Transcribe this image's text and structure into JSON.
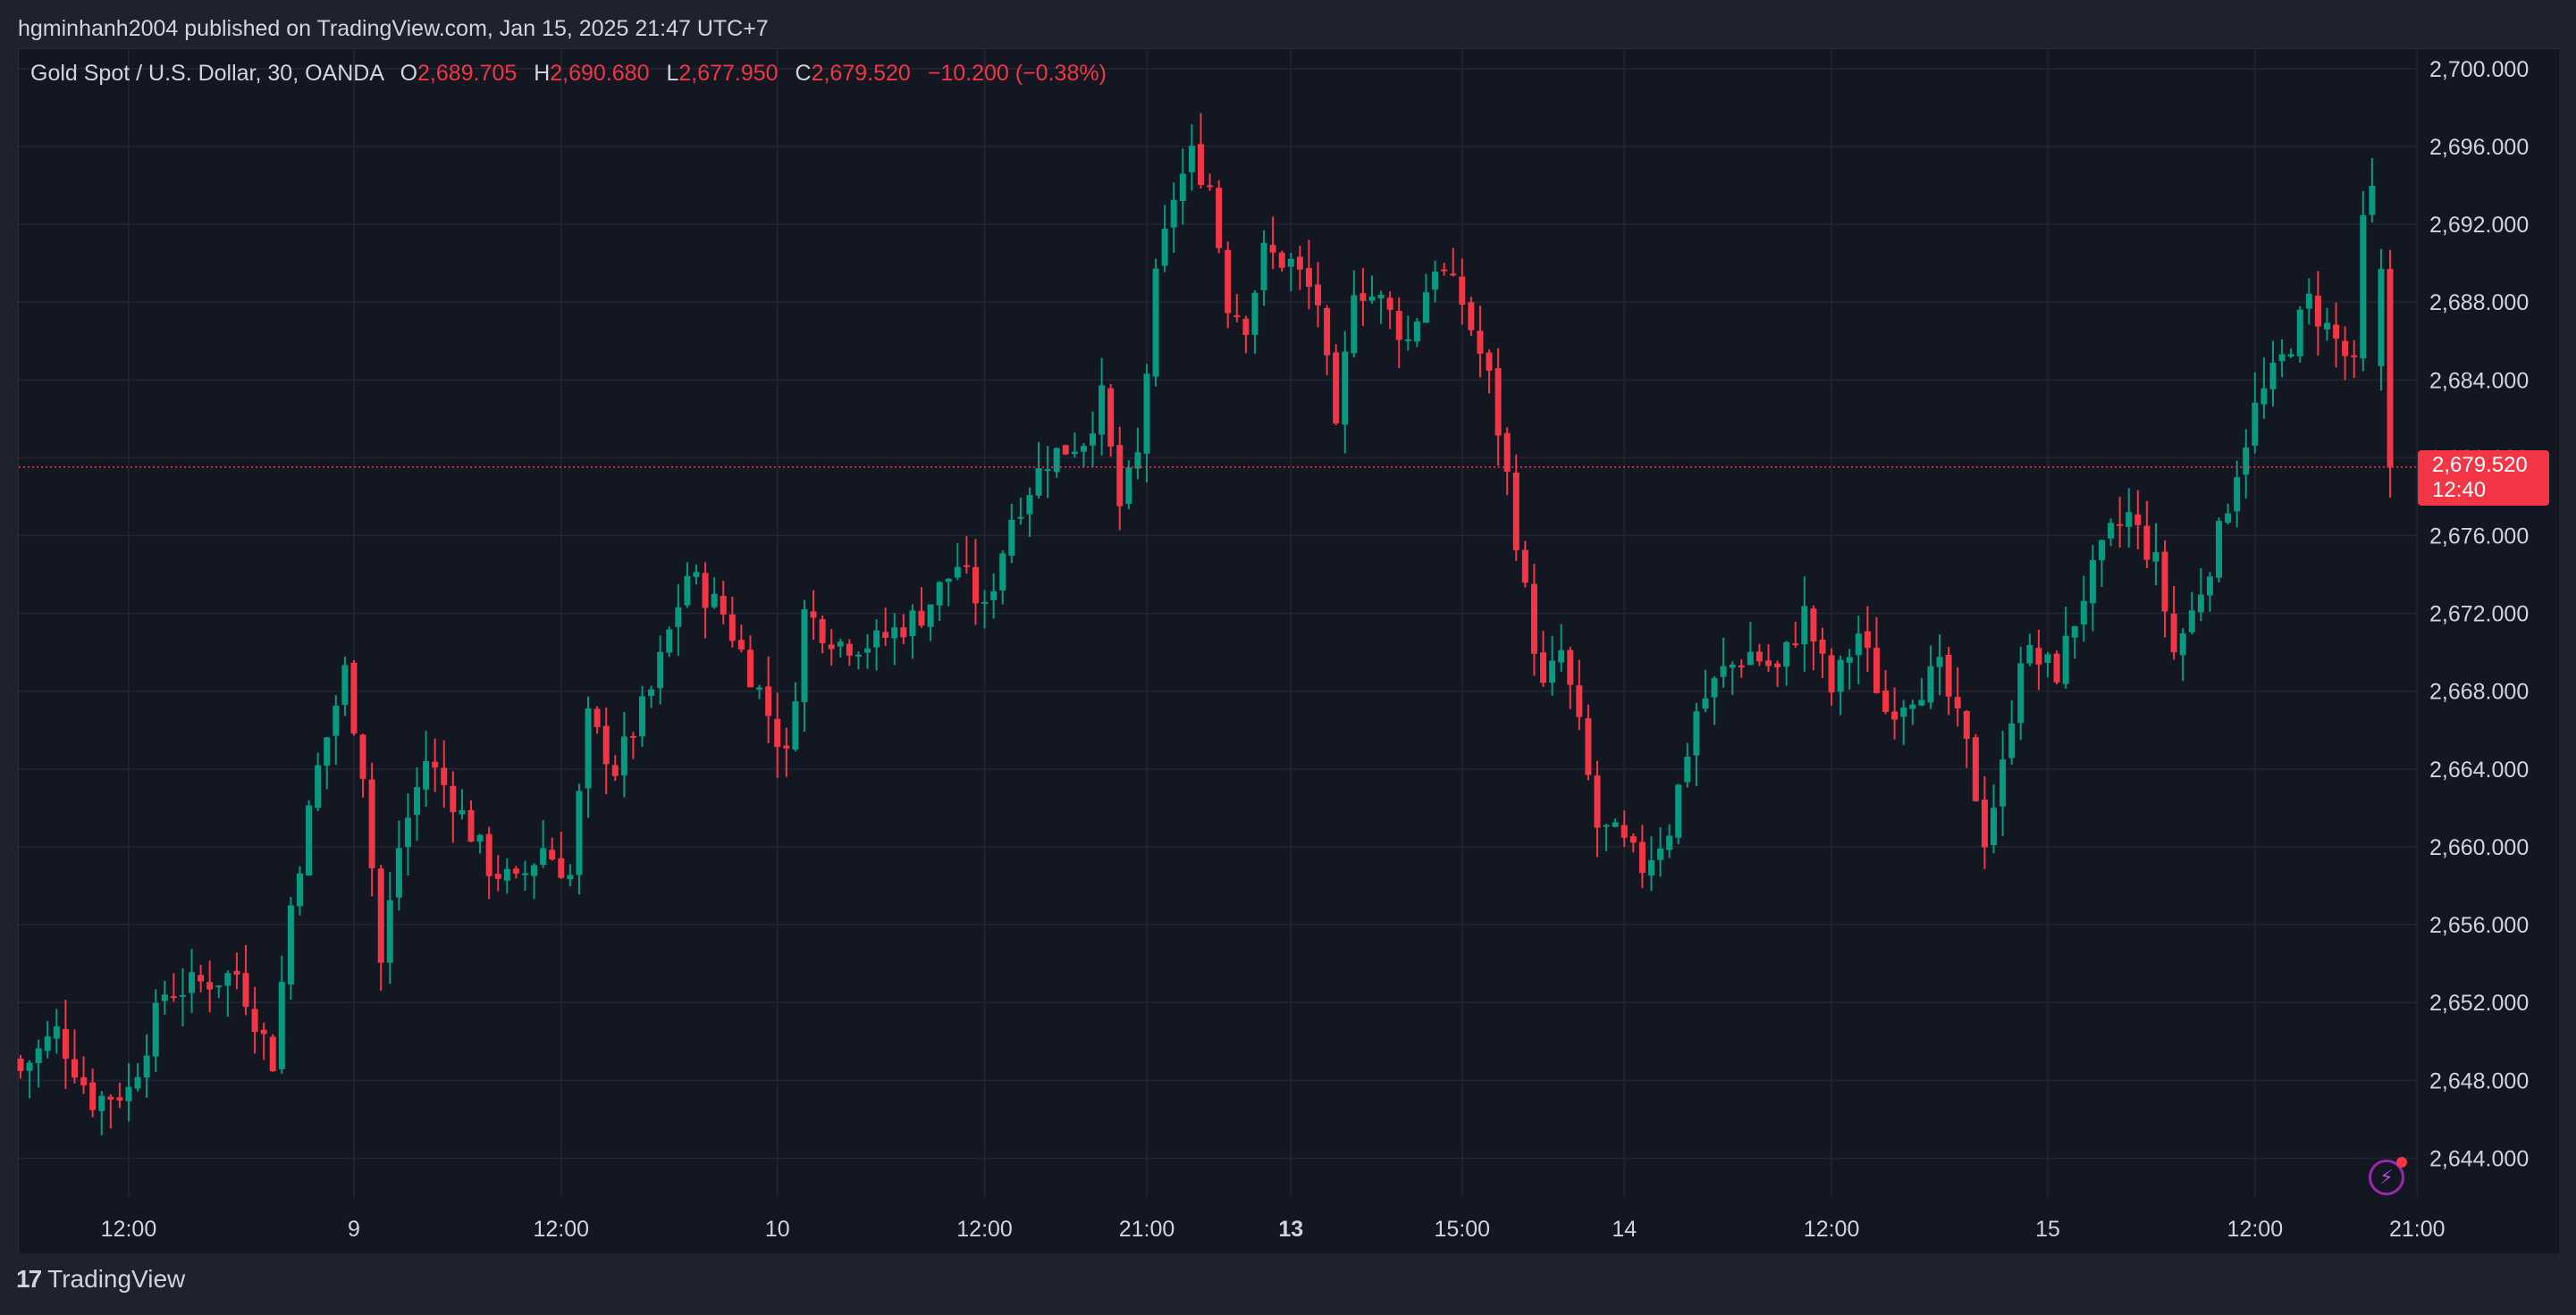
{
  "header": {
    "published_text": "hgminhanh2004 published on TradingView.com, Jan 15, 2025 21:47 UTC+7"
  },
  "legend": {
    "symbol": "Gold Spot / U.S. Dollar, 30, OANDA",
    "open_label": "O",
    "open": "2,689.705",
    "high_label": "H",
    "high": "2,690.680",
    "low_label": "L",
    "low": "2,677.950",
    "close_label": "C",
    "close": "2,679.520",
    "change": "−10.200 (−0.38%)"
  },
  "price_tag": {
    "price": "2,679.520",
    "countdown": "12:40"
  },
  "brand": {
    "name": "TradingView"
  },
  "colors": {
    "up": "#089981",
    "down": "#f23645",
    "grid": "#232632",
    "axis_text": "#d1d4dc",
    "last_price_line": "#f23645"
  },
  "chart_data": {
    "type": "candlestick",
    "title": "Gold Spot / U.S. Dollar, 30, OANDA",
    "ylim": [
      2642,
      2701
    ],
    "grid": true,
    "y_ticks": [
      {
        "value": 2644,
        "label": "2,644.000"
      },
      {
        "value": 2648,
        "label": "2,648.000"
      },
      {
        "value": 2652,
        "label": "2,652.000"
      },
      {
        "value": 2656,
        "label": "2,656.000"
      },
      {
        "value": 2660,
        "label": "2,660.000"
      },
      {
        "value": 2664,
        "label": "2,664.000"
      },
      {
        "value": 2668,
        "label": "2,668.000"
      },
      {
        "value": 2672,
        "label": "2,672.000"
      },
      {
        "value": 2676,
        "label": "2,676.000"
      },
      {
        "value": 2680,
        "label": "2,680.000"
      },
      {
        "value": 2684,
        "label": "2,684.000"
      },
      {
        "value": 2688,
        "label": "2,688.000"
      },
      {
        "value": 2692,
        "label": "2,692.000"
      },
      {
        "value": 2696,
        "label": "2,696.000"
      },
      {
        "value": 2700,
        "label": "2,700.000"
      }
    ],
    "x_ticks": [
      {
        "bar": 12,
        "label": "12:00",
        "bold": false
      },
      {
        "bar": 37,
        "label": "9",
        "bold": false
      },
      {
        "bar": 60,
        "label": "12:00",
        "bold": false
      },
      {
        "bar": 84,
        "label": "10",
        "bold": false
      },
      {
        "bar": 107,
        "label": "12:00",
        "bold": false
      },
      {
        "bar": 125,
        "label": "21:00",
        "bold": false
      },
      {
        "bar": 141,
        "label": "13",
        "bold": true
      },
      {
        "bar": 160,
        "label": "15:00",
        "bold": false
      },
      {
        "bar": 178,
        "label": "14",
        "bold": false
      },
      {
        "bar": 201,
        "label": "12:00",
        "bold": false
      },
      {
        "bar": 225,
        "label": "15",
        "bold": false
      },
      {
        "bar": 248,
        "label": "12:00",
        "bold": false
      },
      {
        "bar": 266,
        "label": "21:00",
        "bold": false
      }
    ],
    "last_price": 2679.52,
    "anchors": [
      [
        0,
        2648.5
      ],
      [
        4,
        2650.5
      ],
      [
        8,
        2647.0
      ],
      [
        12,
        2647.5
      ],
      [
        16,
        2652.5
      ],
      [
        20,
        2653.0
      ],
      [
        24,
        2653.5
      ],
      [
        28,
        2649.0
      ],
      [
        30,
        2657.0
      ],
      [
        33,
        2664.0
      ],
      [
        36,
        2669.0
      ],
      [
        38,
        2664.0
      ],
      [
        40,
        2654.0
      ],
      [
        42,
        2660.0
      ],
      [
        45,
        2664.5
      ],
      [
        48,
        2662.5
      ],
      [
        52,
        2659.0
      ],
      [
        55,
        2658.0
      ],
      [
        58,
        2660.0
      ],
      [
        61,
        2658.5
      ],
      [
        63,
        2666.5
      ],
      [
        66,
        2664.0
      ],
      [
        70,
        2668.0
      ],
      [
        74,
        2674.0
      ],
      [
        78,
        2672.0
      ],
      [
        82,
        2668.0
      ],
      [
        85,
        2664.5
      ],
      [
        87,
        2672.0
      ],
      [
        91,
        2670.5
      ],
      [
        95,
        2670.5
      ],
      [
        100,
        2672.0
      ],
      [
        104,
        2674.5
      ],
      [
        107,
        2672.0
      ],
      [
        110,
        2677.0
      ],
      [
        114,
        2680.0
      ],
      [
        118,
        2681.0
      ],
      [
        120,
        2683.0
      ],
      [
        122,
        2677.5
      ],
      [
        124,
        2680.0
      ],
      [
        126,
        2689.0
      ],
      [
        128,
        2693.5
      ],
      [
        130,
        2695.5
      ],
      [
        132,
        2694.0
      ],
      [
        134,
        2688.0
      ],
      [
        136,
        2687.0
      ],
      [
        138,
        2690.5
      ],
      [
        141,
        2690.0
      ],
      [
        144,
        2688.0
      ],
      [
        146,
        2681.0
      ],
      [
        148,
        2689.0
      ],
      [
        151,
        2688.0
      ],
      [
        154,
        2686.0
      ],
      [
        157,
        2690.0
      ],
      [
        160,
        2688.0
      ],
      [
        163,
        2684.0
      ],
      [
        165,
        2679.0
      ],
      [
        167,
        2673.0
      ],
      [
        169,
        2668.0
      ],
      [
        171,
        2670.0
      ],
      [
        173,
        2666.0
      ],
      [
        175,
        2661.0
      ],
      [
        177,
        2660.5
      ],
      [
        180,
        2659.0
      ],
      [
        183,
        2661.0
      ],
      [
        186,
        2667.0
      ],
      [
        189,
        2669.0
      ],
      [
        192,
        2670.0
      ],
      [
        195,
        2669.0
      ],
      [
        198,
        2672.0
      ],
      [
        201,
        2668.0
      ],
      [
        204,
        2671.0
      ],
      [
        207,
        2667.0
      ],
      [
        210,
        2668.0
      ],
      [
        213,
        2669.0
      ],
      [
        216,
        2665.0
      ],
      [
        218,
        2660.5
      ],
      [
        220,
        2664.0
      ],
      [
        222,
        2670.0
      ],
      [
        226,
        2669.0
      ],
      [
        229,
        2673.0
      ],
      [
        232,
        2676.0
      ],
      [
        234,
        2677.0
      ],
      [
        237,
        2674.5
      ],
      [
        239,
        2670.0
      ],
      [
        241,
        2672.0
      ],
      [
        244,
        2676.0
      ],
      [
        246,
        2679.5
      ],
      [
        248,
        2682.5
      ],
      [
        251,
        2685.0
      ],
      [
        254,
        2688.0
      ],
      [
        257,
        2686.0
      ],
      [
        259,
        2684.5
      ],
      [
        260,
        2692.0
      ],
      [
        261,
        2693.5
      ],
      [
        262,
        2689.705
      ],
      [
        263,
        2679.52
      ]
    ]
  }
}
